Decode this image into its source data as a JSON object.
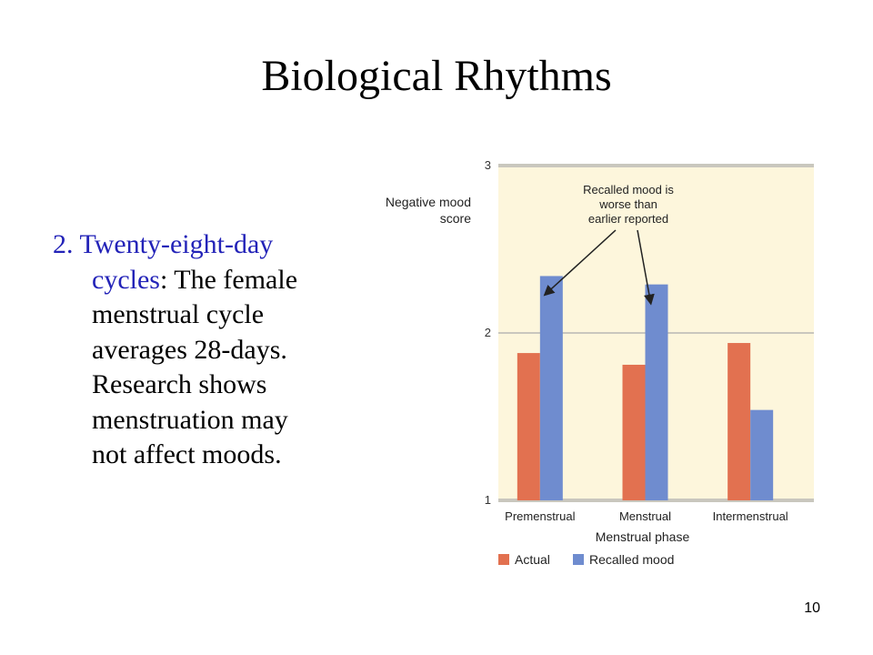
{
  "slide": {
    "title": "Biological Rhythms",
    "bullet_lines": [
      {
        "blue": "2. Twenty-eight-day",
        "black": ""
      },
      {
        "blue": "cycles",
        "black": ": The female"
      },
      {
        "blue": "",
        "black": "menstrual cycle"
      },
      {
        "blue": "",
        "black": "averages 28-days."
      },
      {
        "blue": "",
        "black": "Research shows"
      },
      {
        "blue": "",
        "black": "menstruation may"
      },
      {
        "blue": "",
        "black": "not affect moods."
      }
    ],
    "page_number": "10"
  },
  "colors": {
    "text_blue": "#2323b8",
    "plot_background": "#fdf6dc",
    "actual": "#e27150",
    "recalled": "#6f8ccf",
    "gridline": "#c9c7be"
  },
  "chart_data": {
    "type": "bar",
    "categories": [
      "Premenstrual",
      "Menstrual",
      "Intermenstrual"
    ],
    "series": [
      {
        "name": "Actual",
        "values": [
          1.88,
          1.81,
          1.94
        ]
      },
      {
        "name": "Recalled mood",
        "values": [
          2.34,
          2.29,
          1.54
        ]
      }
    ],
    "xlabel": "Menstrual phase",
    "ylabel_lines": [
      "Negative mood",
      "score"
    ],
    "ylim": [
      1,
      3
    ],
    "yticks": [
      1,
      2,
      3
    ],
    "annotation_lines": [
      "Recalled mood is",
      "worse than",
      "earlier reported"
    ],
    "legend": [
      "Actual",
      "Recalled mood"
    ],
    "legend_position": "bottom",
    "grid": true
  }
}
